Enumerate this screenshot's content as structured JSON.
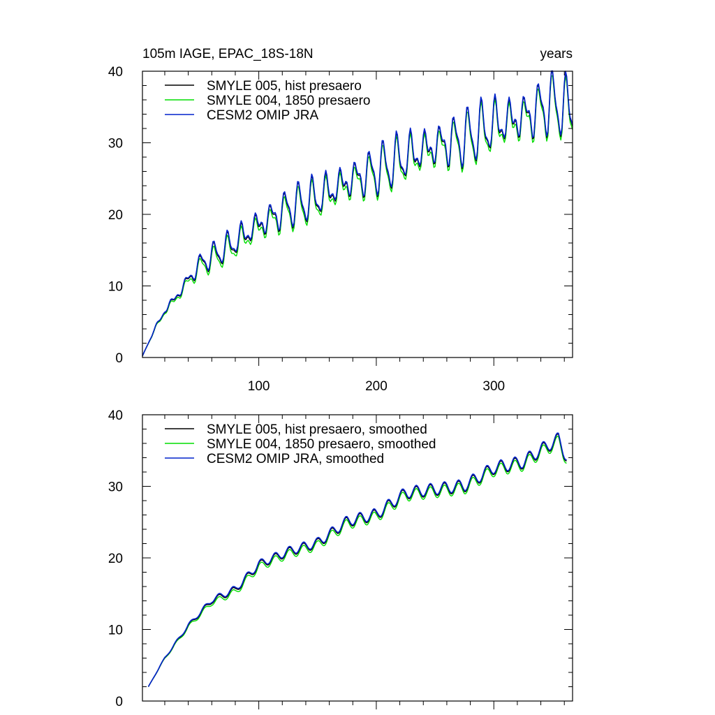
{
  "chart_data": [
    {
      "type": "line",
      "title": "105m IAGE, EPAC_18S-18N",
      "units": "years",
      "xlim": [
        1,
        367
      ],
      "ylim": [
        0,
        40
      ],
      "x_ticks": [
        100,
        200,
        300
      ],
      "y_ticks": [
        0,
        10,
        20,
        30,
        40
      ],
      "x_tick_labels": [
        "100",
        "200",
        "300"
      ],
      "y_tick_labels": [
        "0",
        "10",
        "20",
        "30",
        "40"
      ],
      "grid": false,
      "legend_position": "top-left",
      "series": [
        {
          "name": "SMYLE 005, hist presaero",
          "color": "#000000",
          "offset": 0.0
        },
        {
          "name": "SMYLE 004, 1850 presaero",
          "color": "#00dd00",
          "offset": -0.5
        },
        {
          "name": "CESM2 OMIP JRA",
          "color": "#0022cc",
          "offset": 0.2
        }
      ],
      "trend_points": [
        [
          1,
          0.2
        ],
        [
          10,
          3.5
        ],
        [
          20,
          6.5
        ],
        [
          30,
          8.5
        ],
        [
          40,
          10.8
        ],
        [
          50,
          13
        ],
        [
          75,
          15.5
        ],
        [
          100,
          18.5
        ],
        [
          125,
          20.8
        ],
        [
          150,
          22.3
        ],
        [
          175,
          24.5
        ],
        [
          200,
          26
        ],
        [
          225,
          28
        ],
        [
          250,
          29.5
        ],
        [
          275,
          30.5
        ],
        [
          300,
          32.5
        ],
        [
          325,
          33.5
        ],
        [
          350,
          35.5
        ],
        [
          367,
          34.5
        ]
      ],
      "seasonal_amplitude": [
        [
          1,
          0
        ],
        [
          20,
          0.4
        ],
        [
          60,
          1.2
        ],
        [
          100,
          1.8
        ],
        [
          200,
          2.4
        ],
        [
          300,
          2.8
        ],
        [
          367,
          3.0
        ]
      ],
      "smoothed": false
    },
    {
      "type": "line",
      "title": "",
      "units": "",
      "xlim": [
        1,
        367
      ],
      "ylim": [
        0,
        40
      ],
      "x_ticks": [
        100,
        200,
        300
      ],
      "y_ticks": [
        0,
        10,
        20,
        30,
        40
      ],
      "x_tick_labels": [],
      "y_tick_labels": [
        "0",
        "10",
        "20",
        "30",
        "40"
      ],
      "grid": false,
      "legend_position": "top-left",
      "series": [
        {
          "name": "SMYLE 005, hist presaero, smoothed",
          "color": "#000000",
          "offset": 0.0
        },
        {
          "name": "SMYLE 004, 1850 presaero, smoothed",
          "color": "#00dd00",
          "offset": -0.3
        },
        {
          "name": "CESM2 OMIP JRA, smoothed",
          "color": "#0022cc",
          "offset": 0.15
        }
      ],
      "trend_points": [
        [
          6,
          2
        ],
        [
          20,
          6
        ],
        [
          40,
          10.5
        ],
        [
          60,
          14
        ],
        [
          80,
          15.5
        ],
        [
          100,
          19
        ],
        [
          125,
          20.8
        ],
        [
          150,
          22
        ],
        [
          175,
          25
        ],
        [
          200,
          26
        ],
        [
          225,
          29
        ],
        [
          250,
          29.5
        ],
        [
          275,
          30
        ],
        [
          300,
          32.5
        ],
        [
          325,
          33.3
        ],
        [
          340,
          35
        ],
        [
          355,
          36.5
        ],
        [
          362,
          34
        ]
      ],
      "seasonal_amplitude": [
        [
          6,
          0
        ],
        [
          30,
          0.2
        ],
        [
          80,
          0.5
        ],
        [
          200,
          0.8
        ],
        [
          362,
          0.9
        ]
      ],
      "smoothed": true
    }
  ]
}
